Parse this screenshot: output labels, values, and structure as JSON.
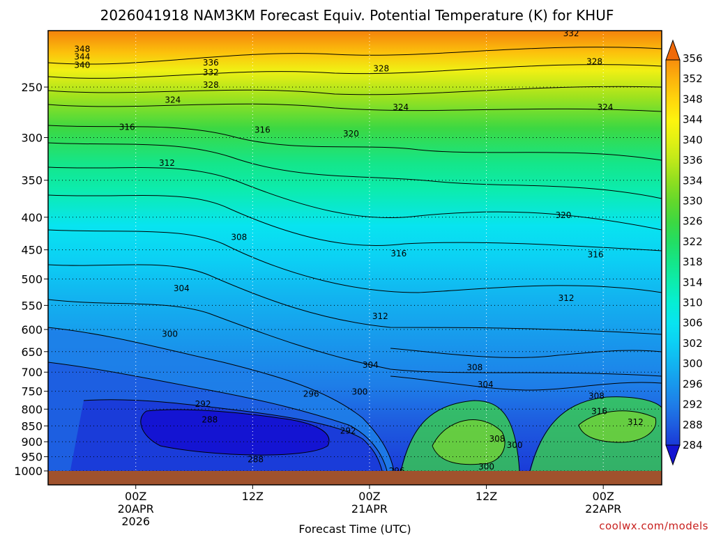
{
  "chart_data": {
    "type": "heatmap",
    "title": "2026041918 NAM3KM Forecast Equiv. Potential Temperature (K) for KHUF",
    "xlabel": "Forecast Time (UTC)",
    "ylabel": "",
    "y_scale": "log-pressure",
    "ylim": [
      1025,
      200
    ],
    "y_ticks": [
      {
        "value": 250,
        "label": "250"
      },
      {
        "value": 300,
        "label": "300"
      },
      {
        "value": 350,
        "label": "350"
      },
      {
        "value": 400,
        "label": "400"
      },
      {
        "value": 450,
        "label": "450"
      },
      {
        "value": 500,
        "label": "500"
      },
      {
        "value": 550,
        "label": "550"
      },
      {
        "value": 600,
        "label": "600"
      },
      {
        "value": 650,
        "label": "650"
      },
      {
        "value": 700,
        "label": "700"
      },
      {
        "value": 750,
        "label": "750"
      },
      {
        "value": 800,
        "label": "800"
      },
      {
        "value": 850,
        "label": "850"
      },
      {
        "value": 900,
        "label": "900"
      },
      {
        "value": 950,
        "label": "950"
      },
      {
        "value": 1000,
        "label": "1000"
      }
    ],
    "xlim": [
      -3,
      60
    ],
    "x_ticks": [
      {
        "hour": 6,
        "lines": [
          "00Z",
          "20APR",
          "2026"
        ]
      },
      {
        "hour": 18,
        "lines": [
          "12Z"
        ]
      },
      {
        "hour": 30,
        "lines": [
          "00Z",
          "21APR"
        ]
      },
      {
        "hour": 42,
        "lines": [
          "12Z"
        ]
      },
      {
        "hour": 54,
        "lines": [
          "00Z",
          "22APR"
        ]
      }
    ],
    "colorbar": {
      "min": 284,
      "max": 356,
      "step": 2,
      "labels": [
        "356",
        "352",
        "348",
        "344",
        "340",
        "336",
        "334",
        "330",
        "326",
        "322",
        "318",
        "314",
        "310",
        "306",
        "302",
        "300",
        "296",
        "292",
        "288",
        "284"
      ],
      "colors": [
        "#1414d2",
        "#1a3ad8",
        "#1e5ee0",
        "#1e7ee8",
        "#1898ec",
        "#12b4f0",
        "#0ccff4",
        "#08e4f0",
        "#06eed4",
        "#0cecae",
        "#14e68a",
        "#22de64",
        "#3cd842",
        "#62d82c",
        "#8ede20",
        "#bce81a",
        "#e0f014",
        "#fcf40e",
        "#fed80c",
        "#fcb60c",
        "#f8900c",
        "#f06a0a"
      ]
    },
    "contour_levels_labeled": [
      {
        "value": "348",
        "hour": 0.5,
        "p": 218
      },
      {
        "value": "344",
        "hour": 0.5,
        "p": 224
      },
      {
        "value": "340",
        "hour": 0.5,
        "p": 231
      },
      {
        "value": "336",
        "hour": 13.7,
        "p": 229
      },
      {
        "value": "332",
        "hour": 13.7,
        "p": 237
      },
      {
        "value": "328",
        "hour": 13.7,
        "p": 248
      },
      {
        "value": "324",
        "hour": 9.8,
        "p": 262
      },
      {
        "value": "316",
        "hour": 5.1,
        "p": 289
      },
      {
        "value": "316",
        "hour": 19.0,
        "p": 292
      },
      {
        "value": "320",
        "hour": 28.1,
        "p": 296
      },
      {
        "value": "312",
        "hour": 9.2,
        "p": 329
      },
      {
        "value": "308",
        "hour": 16.6,
        "p": 430
      },
      {
        "value": "304",
        "hour": 10.7,
        "p": 517
      },
      {
        "value": "300",
        "hour": 9.5,
        "p": 610
      },
      {
        "value": "296",
        "hour": 24.0,
        "p": 757
      },
      {
        "value": "292",
        "hour": 12.9,
        "p": 785
      },
      {
        "value": "288",
        "hour": 13.6,
        "p": 831
      },
      {
        "value": "288",
        "hour": 18.3,
        "p": 959
      },
      {
        "value": "292",
        "hour": 27.8,
        "p": 865
      },
      {
        "value": "300",
        "hour": 29.0,
        "p": 752
      },
      {
        "value": "304",
        "hour": 30.1,
        "p": 682
      },
      {
        "value": "312",
        "hour": 31.1,
        "p": 572
      },
      {
        "value": "316",
        "hour": 33.0,
        "p": 456
      },
      {
        "value": "320",
        "hour": 49.9,
        "p": 397
      },
      {
        "value": "316",
        "hour": 53.2,
        "p": 458
      },
      {
        "value": "312",
        "hour": 50.2,
        "p": 536
      },
      {
        "value": "324",
        "hour": 33.2,
        "p": 269
      },
      {
        "value": "324",
        "hour": 54.2,
        "p": 269
      },
      {
        "value": "328",
        "hour": 31.2,
        "p": 234
      },
      {
        "value": "328",
        "hour": 53.1,
        "p": 228
      },
      {
        "value": "332",
        "hour": 50.7,
        "p": 206
      },
      {
        "value": "308",
        "hour": 40.8,
        "p": 688
      },
      {
        "value": "304",
        "hour": 41.9,
        "p": 732
      },
      {
        "value": "308",
        "hour": 43.1,
        "p": 891
      },
      {
        "value": "300",
        "hour": 44.9,
        "p": 911
      },
      {
        "value": "300",
        "hour": 42.0,
        "p": 985
      },
      {
        "value": "296",
        "hour": 32.8,
        "p": 1000
      },
      {
        "value": "308",
        "hour": 53.3,
        "p": 763
      },
      {
        "value": "316",
        "hour": 53.6,
        "p": 806
      },
      {
        "value": "312",
        "hour": 57.3,
        "p": 839
      }
    ],
    "credit": "coolwx.com/models"
  }
}
